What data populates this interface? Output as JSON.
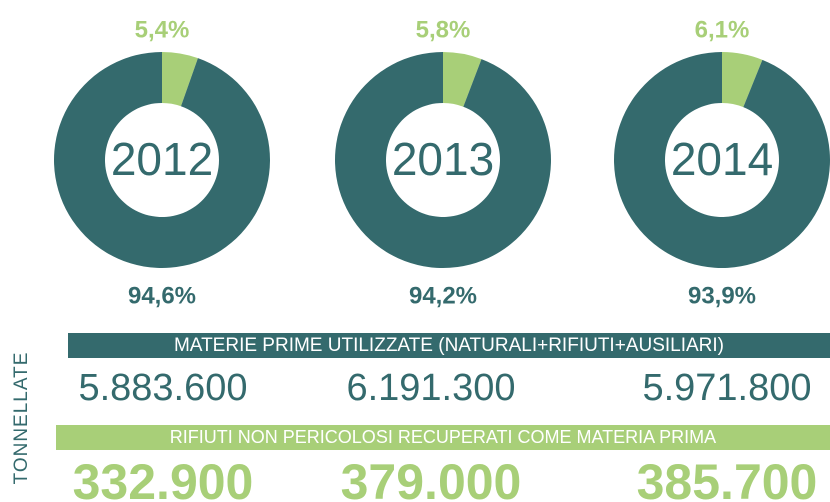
{
  "chart_data": [
    {
      "type": "donut",
      "title": "2012",
      "values": [
        5.4,
        94.6
      ],
      "value_labels": [
        "5,4%",
        "94,6%"
      ],
      "colors": [
        "#a8cf78",
        "#346a6d"
      ]
    },
    {
      "type": "donut",
      "title": "2013",
      "values": [
        5.8,
        94.2
      ],
      "value_labels": [
        "5,8%",
        "94,2%"
      ],
      "colors": [
        "#a8cf78",
        "#346a6d"
      ]
    },
    {
      "type": "donut",
      "title": "2014",
      "values": [
        6.1,
        93.9
      ],
      "value_labels": [
        "6,1%",
        "93,9%"
      ],
      "colors": [
        "#a8cf78",
        "#346a6d"
      ]
    }
  ],
  "unit_label": "TONNELLATE",
  "rows": [
    {
      "label": "MATERIE PRIME UTILIZZATE (NATURALI+RIFIUTI+AUSILIARI)",
      "values": [
        "5.883.600",
        "6.191.300",
        "5.971.800"
      ]
    },
    {
      "label": "RIFIUTI NON PERICOLOSI RECUPERATI COME MATERIA PRIMA",
      "values": [
        "332.900",
        "379.000",
        "385.700"
      ]
    }
  ]
}
